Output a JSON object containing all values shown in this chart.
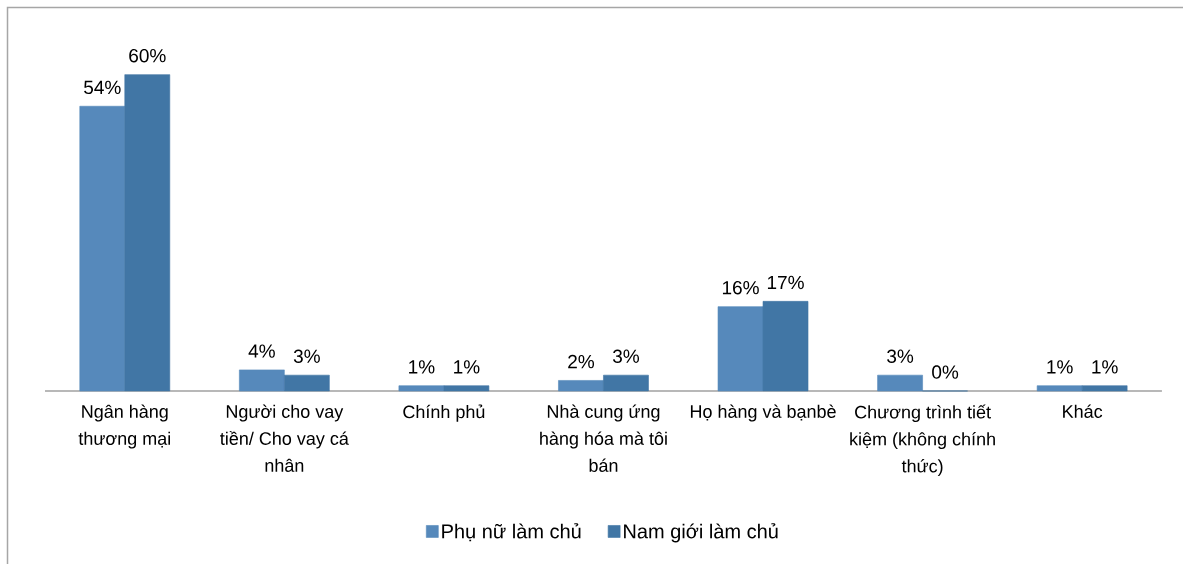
{
  "chart_data": {
    "type": "bar",
    "categories": [
      "Ngân hàng thương mại",
      "Người cho vay tiền/ Cho vay cá nhân",
      "Chính phủ",
      "Nhà cung ứng hàng hóa mà tôi bán",
      "Họ hàng và bạnbè",
      "Chương trình tiết kiệm (không chính thức)",
      "Khác"
    ],
    "series": [
      {
        "name": "Phụ nữ làm chủ",
        "color": "#5689bb",
        "values": [
          54,
          4,
          1,
          2,
          16,
          3,
          1
        ],
        "value_labels": [
          "54%",
          "4%",
          "1%",
          "2%",
          "16%",
          "3%",
          "1%"
        ]
      },
      {
        "name": "Nam giới làm chủ",
        "color": "#4176a5",
        "values": [
          60,
          3,
          1,
          3,
          17,
          0,
          1
        ],
        "value_labels": [
          "60%",
          "3%",
          "1%",
          "3%",
          "17%",
          "0%",
          "1%"
        ]
      }
    ],
    "legend": "bottom"
  }
}
